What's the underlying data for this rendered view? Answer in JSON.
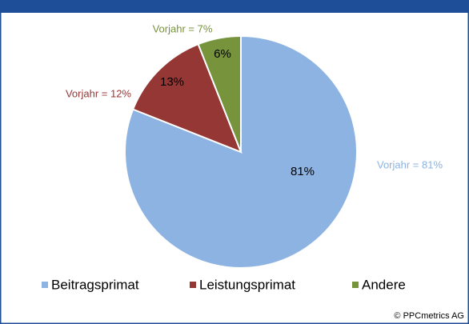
{
  "chart_data": {
    "type": "pie",
    "categories": [
      "Beitragsprimat",
      "Leistungsprimat",
      "Andere"
    ],
    "values": [
      81,
      13,
      6
    ],
    "value_labels": [
      "81%",
      "13%",
      "6%"
    ],
    "colors": [
      "#8db3e2",
      "#953735",
      "#77933c"
    ],
    "annotations": [
      "Vorjahr = 81%",
      "Vorjahr = 12%",
      "Vorjahr = 7%"
    ],
    "legend": "bottom",
    "source": "© PPCmetrics AG"
  }
}
